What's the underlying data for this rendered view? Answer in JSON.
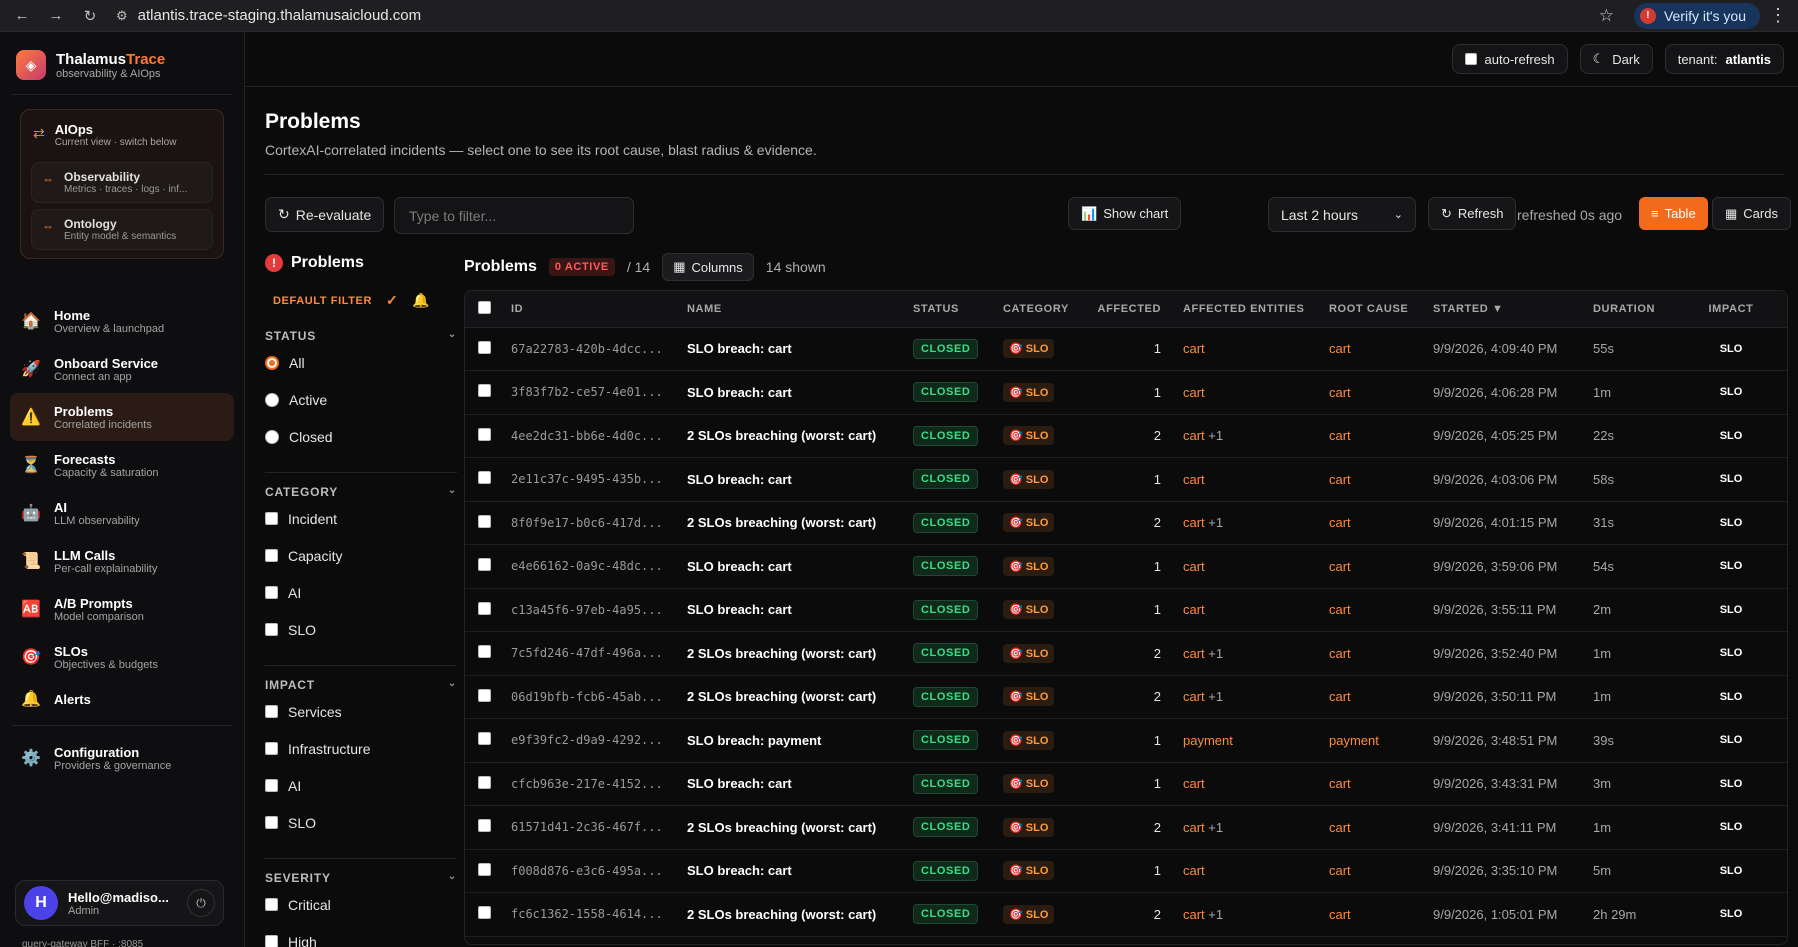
{
  "browser": {
    "url": "atlantis.trace-staging.thalamusaicloud.com",
    "verify_label": "Verify it's you"
  },
  "brand": {
    "name_a": "Thalamus",
    "name_b": "Trace",
    "tagline": "observability & AIOps"
  },
  "aiops": {
    "title": "AIOps",
    "subtitle": "Current view · switch below",
    "items": [
      {
        "title": "Observability",
        "subtitle": "Metrics · traces · logs · inf..."
      },
      {
        "title": "Ontology",
        "subtitle": "Entity model & semantics"
      }
    ]
  },
  "nav": [
    {
      "title": "Home",
      "subtitle": "Overview & launchpad",
      "icon": "🏠"
    },
    {
      "title": "Onboard Service",
      "subtitle": "Connect an app",
      "icon": "🚀"
    },
    {
      "title": "Problems",
      "subtitle": "Correlated incidents",
      "icon": "⚠️"
    },
    {
      "title": "Forecasts",
      "subtitle": "Capacity & saturation",
      "icon": "⏳"
    },
    {
      "title": "AI",
      "subtitle": "LLM observability",
      "icon": "🤖"
    },
    {
      "title": "LLM Calls",
      "subtitle": "Per-call explainability",
      "icon": "📜"
    },
    {
      "title": "A/B Prompts",
      "subtitle": "Model comparison",
      "icon": "🆎"
    },
    {
      "title": "SLOs",
      "subtitle": "Objectives & budgets",
      "icon": "🎯"
    },
    {
      "title": "Alerts",
      "subtitle": "",
      "icon": "🔔"
    }
  ],
  "config": {
    "title": "Configuration",
    "subtitle": "Providers & governance",
    "icon": "⚙️"
  },
  "user": {
    "initial": "H",
    "name": "Hello@madiso...",
    "role": "Admin"
  },
  "footnote": "query-gateway BFF · :8085",
  "topbar": {
    "auto_refresh": "auto-refresh",
    "dark": "Dark",
    "tenant_label": "tenant:",
    "tenant": "atlantis"
  },
  "page": {
    "title": "Problems",
    "subtitle": "CortexAI-correlated incidents — select one to see its root cause, blast radius & evidence."
  },
  "toolbar": {
    "reevaluate": "Re-evaluate",
    "filter_placeholder": "Type to filter...",
    "show_chart": "Show chart",
    "time_range": "Last 2 hours",
    "refresh": "Refresh",
    "refreshed": "refreshed 0s ago",
    "table": "Table",
    "cards": "Cards"
  },
  "filters": {
    "title": "Problems",
    "default_filter": "DEFAULT FILTER",
    "status": {
      "label": "STATUS",
      "options": [
        "All",
        "Active",
        "Closed"
      ],
      "selected": "All"
    },
    "category": {
      "label": "CATEGORY",
      "options": [
        "Incident",
        "Capacity",
        "AI",
        "SLO"
      ]
    },
    "impact": {
      "label": "IMPACT",
      "options": [
        "Services",
        "Infrastructure",
        "AI",
        "SLO"
      ]
    },
    "severity": {
      "label": "SEVERITY",
      "options": [
        "Critical",
        "High"
      ]
    }
  },
  "table": {
    "title": "Problems",
    "active_badge": "0 ACTIVE",
    "of_total": "/ 14",
    "columns_btn": "Columns",
    "shown": "14 shown",
    "headers": [
      "ID",
      "NAME",
      "STATUS",
      "CATEGORY",
      "AFFECTED",
      "AFFECTED ENTITIES",
      "ROOT CAUSE",
      "STARTED ▼",
      "DURATION",
      "IMPACT"
    ],
    "rows": [
      {
        "id": "67a22783-420b-4dcc...",
        "name": "SLO breach: cart",
        "status": "CLOSED",
        "category": "SLO",
        "affected": "1",
        "entity": "cart",
        "more": "",
        "root": "cart",
        "started": "9/9/2026, 4:09:40 PM",
        "duration": "55s",
        "impact": "SLO"
      },
      {
        "id": "3f83f7b2-ce57-4e01...",
        "name": "SLO breach: cart",
        "status": "CLOSED",
        "category": "SLO",
        "affected": "1",
        "entity": "cart",
        "more": "",
        "root": "cart",
        "started": "9/9/2026, 4:06:28 PM",
        "duration": "1m",
        "impact": "SLO"
      },
      {
        "id": "4ee2dc31-bb6e-4d0c...",
        "name": "2 SLOs breaching (worst: cart)",
        "status": "CLOSED",
        "category": "SLO",
        "affected": "2",
        "entity": "cart",
        "more": "+1",
        "root": "cart",
        "started": "9/9/2026, 4:05:25 PM",
        "duration": "22s",
        "impact": "SLO"
      },
      {
        "id": "2e11c37c-9495-435b...",
        "name": "SLO breach: cart",
        "status": "CLOSED",
        "category": "SLO",
        "affected": "1",
        "entity": "cart",
        "more": "",
        "root": "cart",
        "started": "9/9/2026, 4:03:06 PM",
        "duration": "58s",
        "impact": "SLO"
      },
      {
        "id": "8f0f9e17-b0c6-417d...",
        "name": "2 SLOs breaching (worst: cart)",
        "status": "CLOSED",
        "category": "SLO",
        "affected": "2",
        "entity": "cart",
        "more": "+1",
        "root": "cart",
        "started": "9/9/2026, 4:01:15 PM",
        "duration": "31s",
        "impact": "SLO"
      },
      {
        "id": "e4e66162-0a9c-48dc...",
        "name": "SLO breach: cart",
        "status": "CLOSED",
        "category": "SLO",
        "affected": "1",
        "entity": "cart",
        "more": "",
        "root": "cart",
        "started": "9/9/2026, 3:59:06 PM",
        "duration": "54s",
        "impact": "SLO"
      },
      {
        "id": "c13a45f6-97eb-4a95...",
        "name": "SLO breach: cart",
        "status": "CLOSED",
        "category": "SLO",
        "affected": "1",
        "entity": "cart",
        "more": "",
        "root": "cart",
        "started": "9/9/2026, 3:55:11 PM",
        "duration": "2m",
        "impact": "SLO"
      },
      {
        "id": "7c5fd246-47df-496a...",
        "name": "2 SLOs breaching (worst: cart)",
        "status": "CLOSED",
        "category": "SLO",
        "affected": "2",
        "entity": "cart",
        "more": "+1",
        "root": "cart",
        "started": "9/9/2026, 3:52:40 PM",
        "duration": "1m",
        "impact": "SLO"
      },
      {
        "id": "06d19bfb-fcb6-45ab...",
        "name": "2 SLOs breaching (worst: cart)",
        "status": "CLOSED",
        "category": "SLO",
        "affected": "2",
        "entity": "cart",
        "more": "+1",
        "root": "cart",
        "started": "9/9/2026, 3:50:11 PM",
        "duration": "1m",
        "impact": "SLO"
      },
      {
        "id": "e9f39fc2-d9a9-4292...",
        "name": "SLO breach: payment",
        "status": "CLOSED",
        "category": "SLO",
        "affected": "1",
        "entity": "payment",
        "more": "",
        "root": "payment",
        "started": "9/9/2026, 3:48:51 PM",
        "duration": "39s",
        "impact": "SLO"
      },
      {
        "id": "cfcb963e-217e-4152...",
        "name": "SLO breach: cart",
        "status": "CLOSED",
        "category": "SLO",
        "affected": "1",
        "entity": "cart",
        "more": "",
        "root": "cart",
        "started": "9/9/2026, 3:43:31 PM",
        "duration": "3m",
        "impact": "SLO"
      },
      {
        "id": "61571d41-2c36-467f...",
        "name": "2 SLOs breaching (worst: cart)",
        "status": "CLOSED",
        "category": "SLO",
        "affected": "2",
        "entity": "cart",
        "more": "+1",
        "root": "cart",
        "started": "9/9/2026, 3:41:11 PM",
        "duration": "1m",
        "impact": "SLO"
      },
      {
        "id": "f008d876-e3c6-495a...",
        "name": "SLO breach: cart",
        "status": "CLOSED",
        "category": "SLO",
        "affected": "1",
        "entity": "cart",
        "more": "",
        "root": "cart",
        "started": "9/9/2026, 3:35:10 PM",
        "duration": "5m",
        "impact": "SLO"
      },
      {
        "id": "fc6c1362-1558-4614...",
        "name": "2 SLOs breaching (worst: cart)",
        "status": "CLOSED",
        "category": "SLO",
        "affected": "2",
        "entity": "cart",
        "more": "+1",
        "root": "cart",
        "started": "9/9/2026, 1:05:01 PM",
        "duration": "2h 29m",
        "impact": "SLO"
      }
    ]
  },
  "colors": {
    "accent": "#f26b1d",
    "closed": "#3ddc84",
    "active_badge": "#ff5a5a"
  }
}
